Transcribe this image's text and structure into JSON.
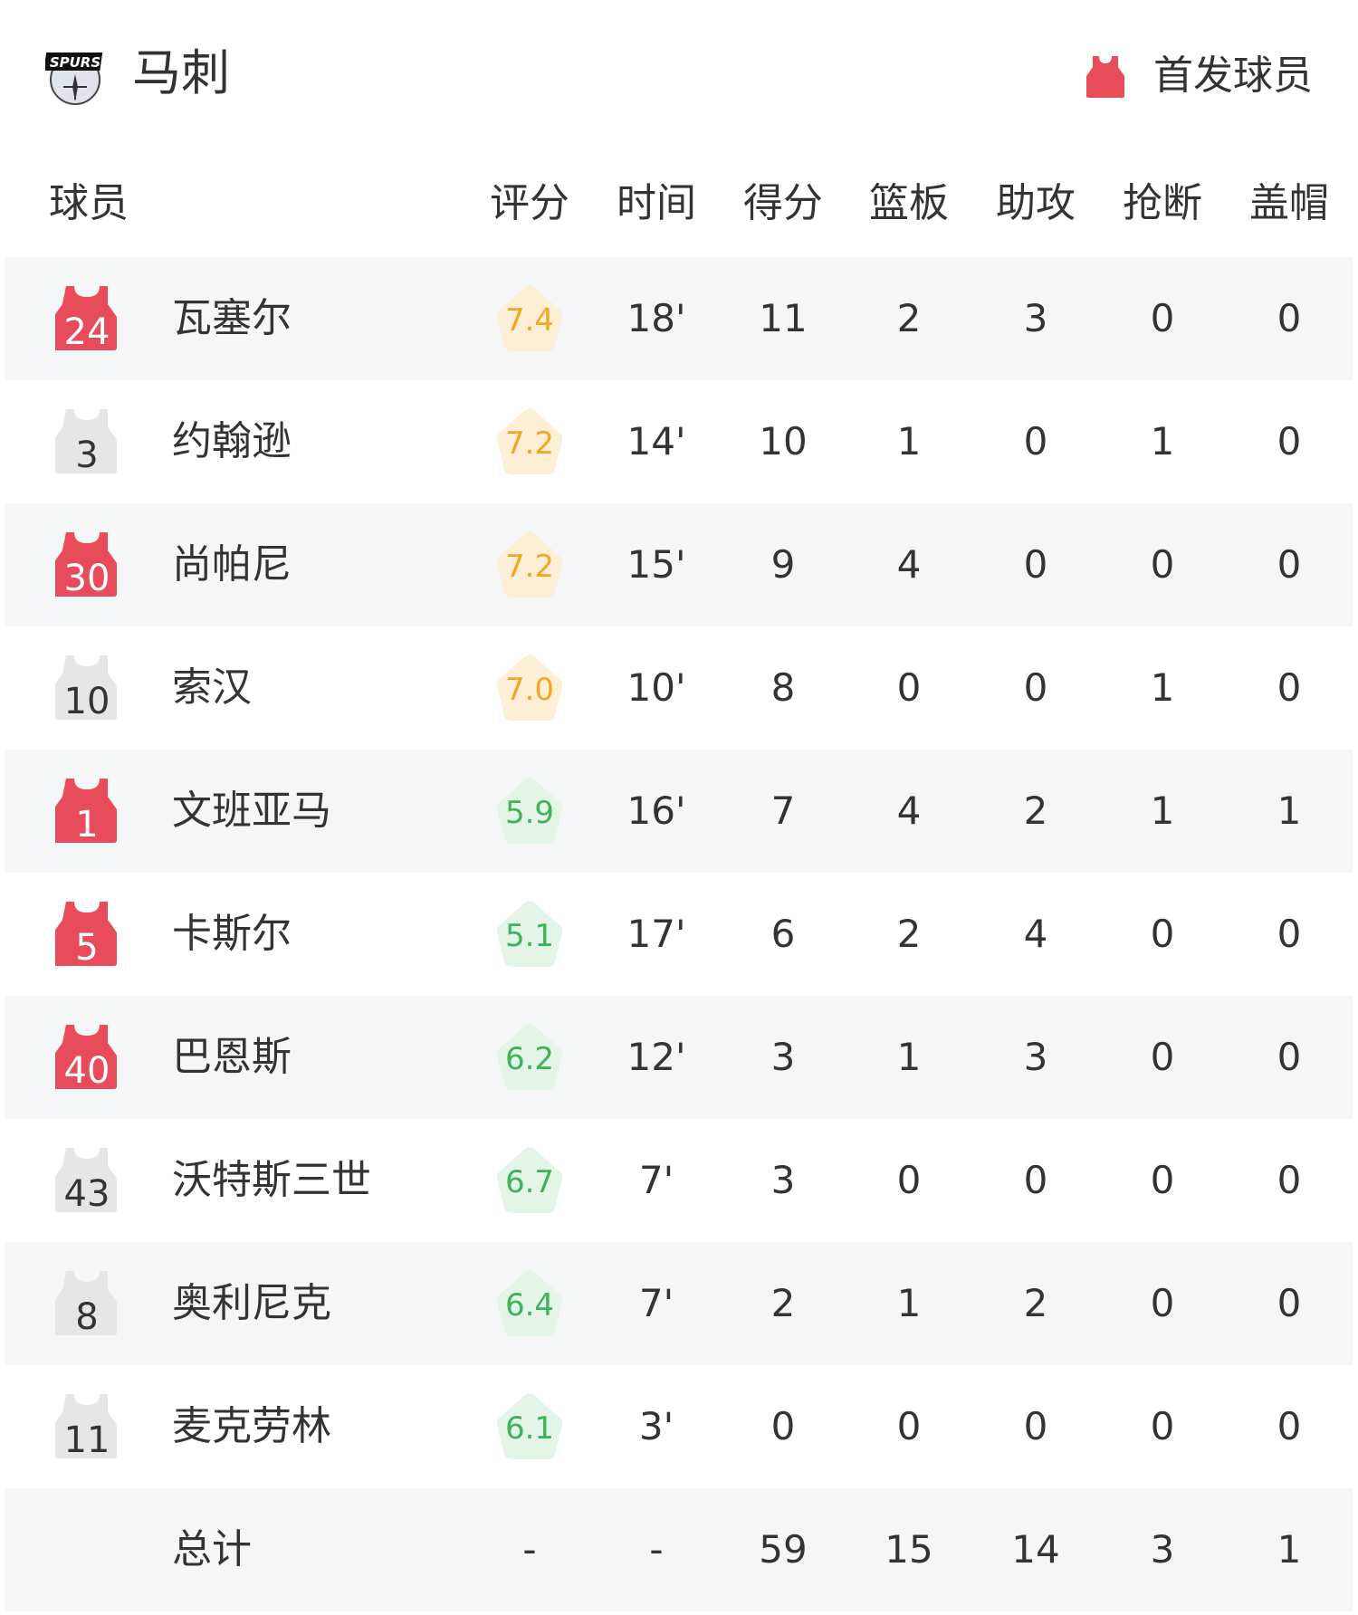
{
  "header": {
    "team_name": "马刺",
    "logo_text": "SPURS",
    "legend_label": "首发球员",
    "starter_color": "#e84c5a",
    "bench_color": "#e6e6e6"
  },
  "columns": {
    "player": "球员",
    "rating": "评分",
    "minutes": "时间",
    "points": "得分",
    "rebounds": "篮板",
    "assists": "助攻",
    "steals": "抢断",
    "blocks": "盖帽"
  },
  "players": [
    {
      "number": "24",
      "name": "瓦塞尔",
      "starter": true,
      "rating": "7.4",
      "minutes": "18'",
      "points": "11",
      "rebounds": "2",
      "assists": "3",
      "steals": "0",
      "blocks": "0"
    },
    {
      "number": "3",
      "name": "约翰逊",
      "starter": false,
      "rating": "7.2",
      "minutes": "14'",
      "points": "10",
      "rebounds": "1",
      "assists": "0",
      "steals": "1",
      "blocks": "0"
    },
    {
      "number": "30",
      "name": "尚帕尼",
      "starter": true,
      "rating": "7.2",
      "minutes": "15'",
      "points": "9",
      "rebounds": "4",
      "assists": "0",
      "steals": "0",
      "blocks": "0"
    },
    {
      "number": "10",
      "name": "索汉",
      "starter": false,
      "rating": "7.0",
      "minutes": "10'",
      "points": "8",
      "rebounds": "0",
      "assists": "0",
      "steals": "1",
      "blocks": "0"
    },
    {
      "number": "1",
      "name": "文班亚马",
      "starter": true,
      "rating": "5.9",
      "minutes": "16'",
      "points": "7",
      "rebounds": "4",
      "assists": "2",
      "steals": "1",
      "blocks": "1"
    },
    {
      "number": "5",
      "name": "卡斯尔",
      "starter": true,
      "rating": "5.1",
      "minutes": "17'",
      "points": "6",
      "rebounds": "2",
      "assists": "4",
      "steals": "0",
      "blocks": "0"
    },
    {
      "number": "40",
      "name": "巴恩斯",
      "starter": true,
      "rating": "6.2",
      "minutes": "12'",
      "points": "3",
      "rebounds": "1",
      "assists": "3",
      "steals": "0",
      "blocks": "0"
    },
    {
      "number": "43",
      "name": "沃特斯三世",
      "starter": false,
      "rating": "6.7",
      "minutes": "7'",
      "points": "3",
      "rebounds": "0",
      "assists": "0",
      "steals": "0",
      "blocks": "0"
    },
    {
      "number": "8",
      "name": "奥利尼克",
      "starter": false,
      "rating": "6.4",
      "minutes": "7'",
      "points": "2",
      "rebounds": "1",
      "assists": "2",
      "steals": "0",
      "blocks": "0"
    },
    {
      "number": "11",
      "name": "麦克劳林",
      "starter": false,
      "rating": "6.1",
      "minutes": "3'",
      "points": "0",
      "rebounds": "0",
      "assists": "0",
      "steals": "0",
      "blocks": "0"
    }
  ],
  "totals": {
    "label": "总计",
    "rating": "-",
    "minutes": "-",
    "points": "59",
    "rebounds": "15",
    "assists": "14",
    "steals": "3",
    "blocks": "1"
  },
  "rating_colors": {
    "high_text": "#f5a623",
    "high_bg": "#fbefd6",
    "low_text": "#3db35a",
    "low_bg": "#e4f5e8"
  }
}
